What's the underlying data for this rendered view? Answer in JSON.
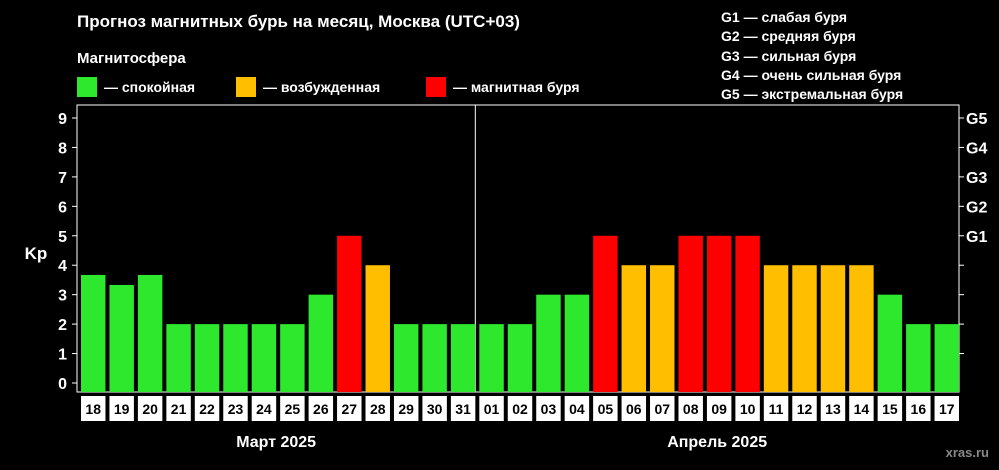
{
  "title": "Прогноз магнитных бурь на месяц, Москва (UTC+03)",
  "subtitle": "Магнитосфера",
  "legend": [
    {
      "label": "— спокойная",
      "color": "#2ee82e"
    },
    {
      "label": "— возбужденная",
      "color": "#ffbf00"
    },
    {
      "label": "— магнитная буря",
      "color": "#ff0000"
    }
  ],
  "g_legend": [
    "G1 — слабая буря",
    "G2 — средняя буря",
    "G3 — сильная буря",
    "G4 — очень сильная буря",
    "G5 — экстремальная буря"
  ],
  "credit": "xras.ru",
  "chart_data": {
    "type": "bar",
    "ylabel": "Kp",
    "ylim": [
      0,
      9
    ],
    "yticks": [
      "0",
      "1",
      "2",
      "3",
      "4",
      "5",
      "6",
      "7",
      "8",
      "9"
    ],
    "right_ticks": [
      {
        "value": 5,
        "label": "G1"
      },
      {
        "value": 6,
        "label": "G2"
      },
      {
        "value": 7,
        "label": "G3"
      },
      {
        "value": 8,
        "label": "G4"
      },
      {
        "value": 9,
        "label": "G5"
      }
    ],
    "categories": [
      "18",
      "19",
      "20",
      "21",
      "22",
      "23",
      "24",
      "25",
      "26",
      "27",
      "28",
      "29",
      "30",
      "31",
      "01",
      "02",
      "03",
      "04",
      "05",
      "06",
      "07",
      "08",
      "09",
      "10",
      "11",
      "12",
      "13",
      "14",
      "15",
      "16",
      "17"
    ],
    "values": [
      3.67,
      3.33,
      3.67,
      2,
      2,
      2,
      2,
      2,
      3,
      5,
      4,
      2,
      2,
      2,
      2,
      2,
      3,
      3,
      5,
      4,
      4,
      5,
      5,
      5,
      4,
      4,
      4,
      4,
      3,
      2,
      2
    ],
    "colors": {
      "calm": "#2ee82e",
      "excited": "#ffbf00",
      "storm": "#ff0000"
    },
    "months": [
      {
        "label": "Март 2025",
        "start": 0,
        "count": 14
      },
      {
        "label": "Апрель 2025",
        "start": 14,
        "count": 17
      }
    ],
    "grid": false,
    "legend_position": "top-left"
  }
}
